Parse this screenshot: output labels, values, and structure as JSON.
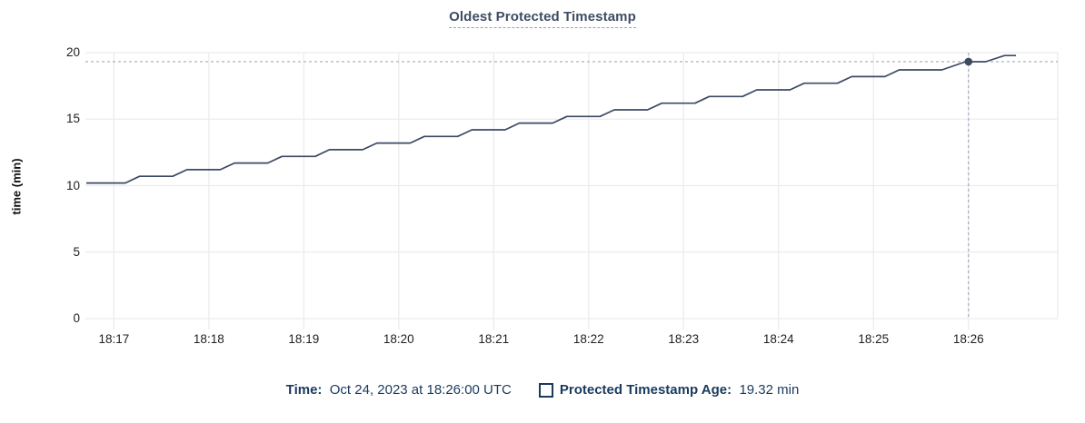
{
  "header": {
    "title": "Oldest Protected Timestamp"
  },
  "footer": {
    "time_label": "Time:",
    "time_value": "Oct 24, 2023 at 18:26:00 UTC",
    "series_label": "Protected Timestamp Age:",
    "series_value": "19.32 min",
    "swatch_icon": "legend-checkbox-square"
  },
  "colors": {
    "line": "#3b4a63",
    "point": "#3b4a63",
    "crosshair": "#9fadbe",
    "grid": "#ececec",
    "title_text": "#3e4d63",
    "footer_text": "#1a3a5e",
    "tick_text": "#1f1f1f"
  },
  "chart_data": {
    "type": "line",
    "title": "Oldest Protected Timestamp",
    "xlabel": "",
    "ylabel": "time (min)",
    "ylim": [
      0,
      20
    ],
    "y_ticks": [
      0,
      5,
      10,
      15,
      20
    ],
    "xlim_minutes_from_1817": [
      -0.3,
      9.94
    ],
    "x_ticks": [
      {
        "t": 0,
        "label": "18:17"
      },
      {
        "t": 1,
        "label": "18:18"
      },
      {
        "t": 2,
        "label": "18:19"
      },
      {
        "t": 3,
        "label": "18:20"
      },
      {
        "t": 4,
        "label": "18:21"
      },
      {
        "t": 5,
        "label": "18:22"
      },
      {
        "t": 6,
        "label": "18:23"
      },
      {
        "t": 7,
        "label": "18:24"
      },
      {
        "t": 8,
        "label": "18:25"
      },
      {
        "t": 9,
        "label": "18:26"
      }
    ],
    "grid": true,
    "legend_position": "bottom",
    "series": [
      {
        "name": "Protected Timestamp Age",
        "unit": "min",
        "points": [
          [
            -0.29,
            10.2
          ],
          [
            0.12,
            10.2
          ],
          [
            0.27,
            10.7
          ],
          [
            0.62,
            10.7
          ],
          [
            0.77,
            11.2
          ],
          [
            1.12,
            11.2
          ],
          [
            1.27,
            11.7
          ],
          [
            1.62,
            11.7
          ],
          [
            1.77,
            12.2
          ],
          [
            2.12,
            12.2
          ],
          [
            2.27,
            12.7
          ],
          [
            2.62,
            12.7
          ],
          [
            2.77,
            13.2
          ],
          [
            3.12,
            13.2
          ],
          [
            3.27,
            13.7
          ],
          [
            3.62,
            13.7
          ],
          [
            3.77,
            14.2
          ],
          [
            4.12,
            14.2
          ],
          [
            4.27,
            14.7
          ],
          [
            4.62,
            14.7
          ],
          [
            4.77,
            15.2
          ],
          [
            5.12,
            15.2
          ],
          [
            5.27,
            15.7
          ],
          [
            5.62,
            15.7
          ],
          [
            5.77,
            16.2
          ],
          [
            6.12,
            16.2
          ],
          [
            6.27,
            16.7
          ],
          [
            6.62,
            16.7
          ],
          [
            6.77,
            17.2
          ],
          [
            7.12,
            17.2
          ],
          [
            7.27,
            17.7
          ],
          [
            7.62,
            17.7
          ],
          [
            7.77,
            18.2
          ],
          [
            8.12,
            18.2
          ],
          [
            8.27,
            18.7
          ],
          [
            8.72,
            18.7
          ],
          [
            8.97,
            19.32
          ],
          [
            9.18,
            19.32
          ],
          [
            9.38,
            19.78
          ],
          [
            9.5,
            19.78
          ]
        ]
      }
    ],
    "highlight": {
      "t": 9.0,
      "value": 19.32,
      "x_label": "18:26",
      "time": "Oct 24, 2023 at 18:26:00 UTC",
      "crosshair": true
    }
  }
}
